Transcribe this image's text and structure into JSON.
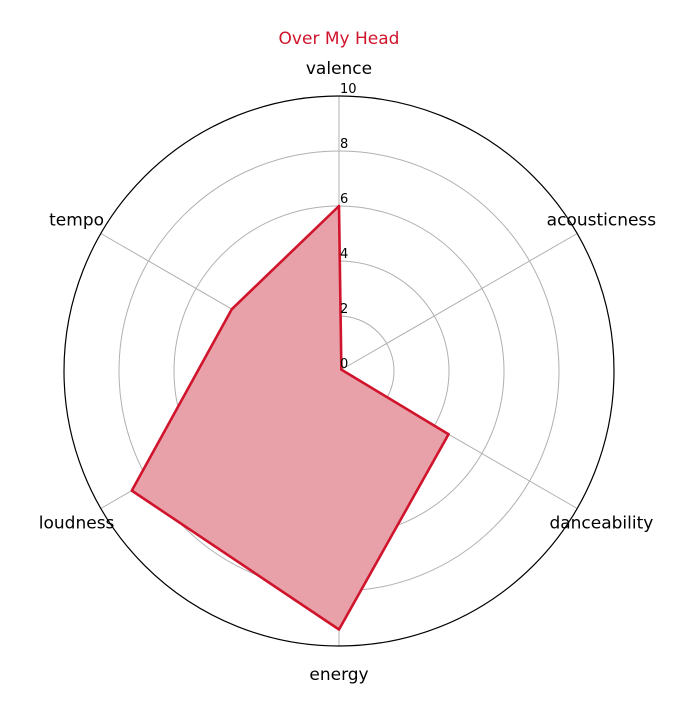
{
  "chart_data": {
    "type": "radar",
    "title": "Over My Head",
    "axes": [
      "valence",
      "acousticness",
      "danceability",
      "energy",
      "loudness",
      "tempo"
    ],
    "series": [
      {
        "name": "",
        "values": [
          6.0,
          0.1,
          4.6,
          9.4,
          8.7,
          4.5
        ]
      }
    ],
    "rlim": [
      0,
      10
    ],
    "rticks": [
      "0",
      "2",
      "4",
      "6",
      "8",
      "10"
    ],
    "grid": true,
    "colors": {
      "line": "#d0142c",
      "fill": "#e8a1a9",
      "grid": "#b0b0b0",
      "frame": "#000000"
    }
  }
}
